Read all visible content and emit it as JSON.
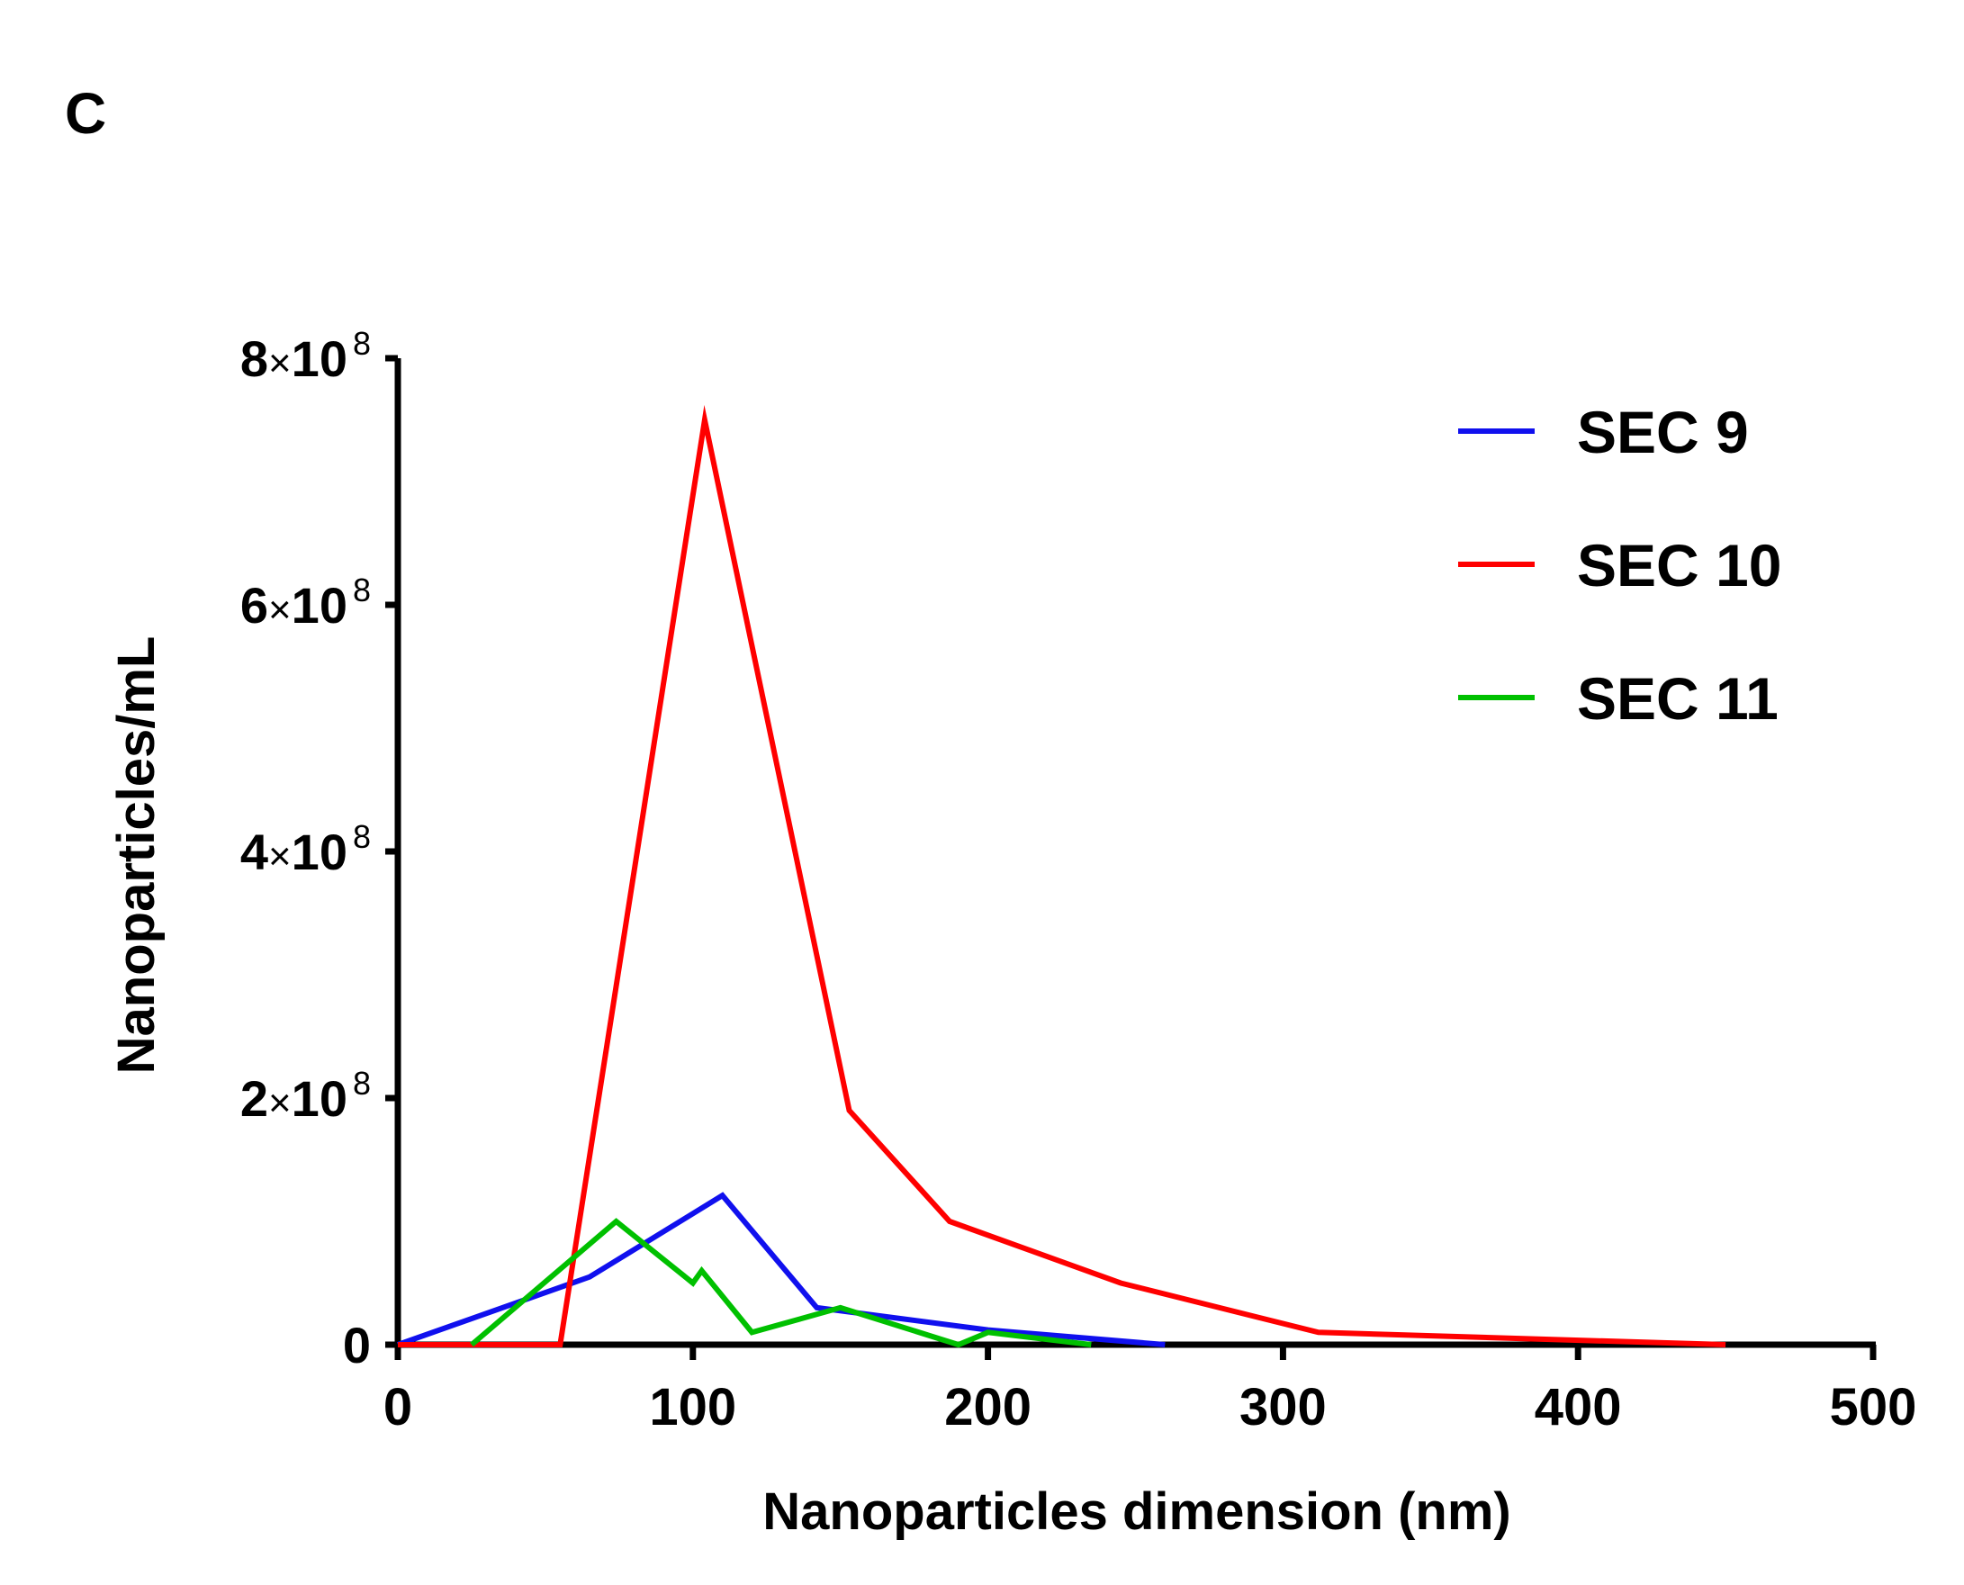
{
  "panel_label": "C",
  "chart_data": {
    "type": "line",
    "title": "",
    "xlabel": "Nanoparticles dimension (nm)",
    "ylabel": "Nanoparticles/mL",
    "xlim": [
      0,
      500
    ],
    "ylim": [
      0,
      800000000
    ],
    "x_ticks": [
      0,
      100,
      200,
      300,
      400,
      500
    ],
    "x_tick_labels": [
      "0",
      "100",
      "200",
      "300",
      "400",
      "500"
    ],
    "y_ticks": [
      0,
      200000000,
      400000000,
      600000000,
      800000000
    ],
    "y_tick_labels": [
      {
        "mantissa": "0",
        "times": "",
        "base": "",
        "exp": ""
      },
      {
        "mantissa": "2",
        "times": "×",
        "base": "10",
        "exp": "8"
      },
      {
        "mantissa": "4",
        "times": "×",
        "base": "10",
        "exp": "8"
      },
      {
        "mantissa": "6",
        "times": "×",
        "base": "10",
        "exp": "8"
      },
      {
        "mantissa": "8",
        "times": "×",
        "base": "10",
        "exp": "8"
      }
    ],
    "grid": false,
    "legend_position": "top-right",
    "series": [
      {
        "name": "SEC 9",
        "color": "#1010ee",
        "x": [
          0,
          65,
          110,
          142,
          200,
          260
        ],
        "y": [
          0,
          55000000,
          121000000,
          30000000,
          12000000,
          0
        ]
      },
      {
        "name": "SEC 10",
        "color": "#ff0000",
        "x": [
          0,
          55,
          104,
          153,
          187,
          245,
          312,
          450
        ],
        "y": [
          0,
          0,
          750000000,
          190000000,
          100000000,
          50000000,
          10000000,
          0
        ]
      },
      {
        "name": "SEC 11",
        "color": "#00c000",
        "x": [
          25,
          74,
          100,
          103,
          120,
          150,
          190,
          200,
          235
        ],
        "y": [
          0,
          100000000,
          50000000,
          60000000,
          10000000,
          30000000,
          0,
          10000000,
          0
        ]
      }
    ]
  }
}
